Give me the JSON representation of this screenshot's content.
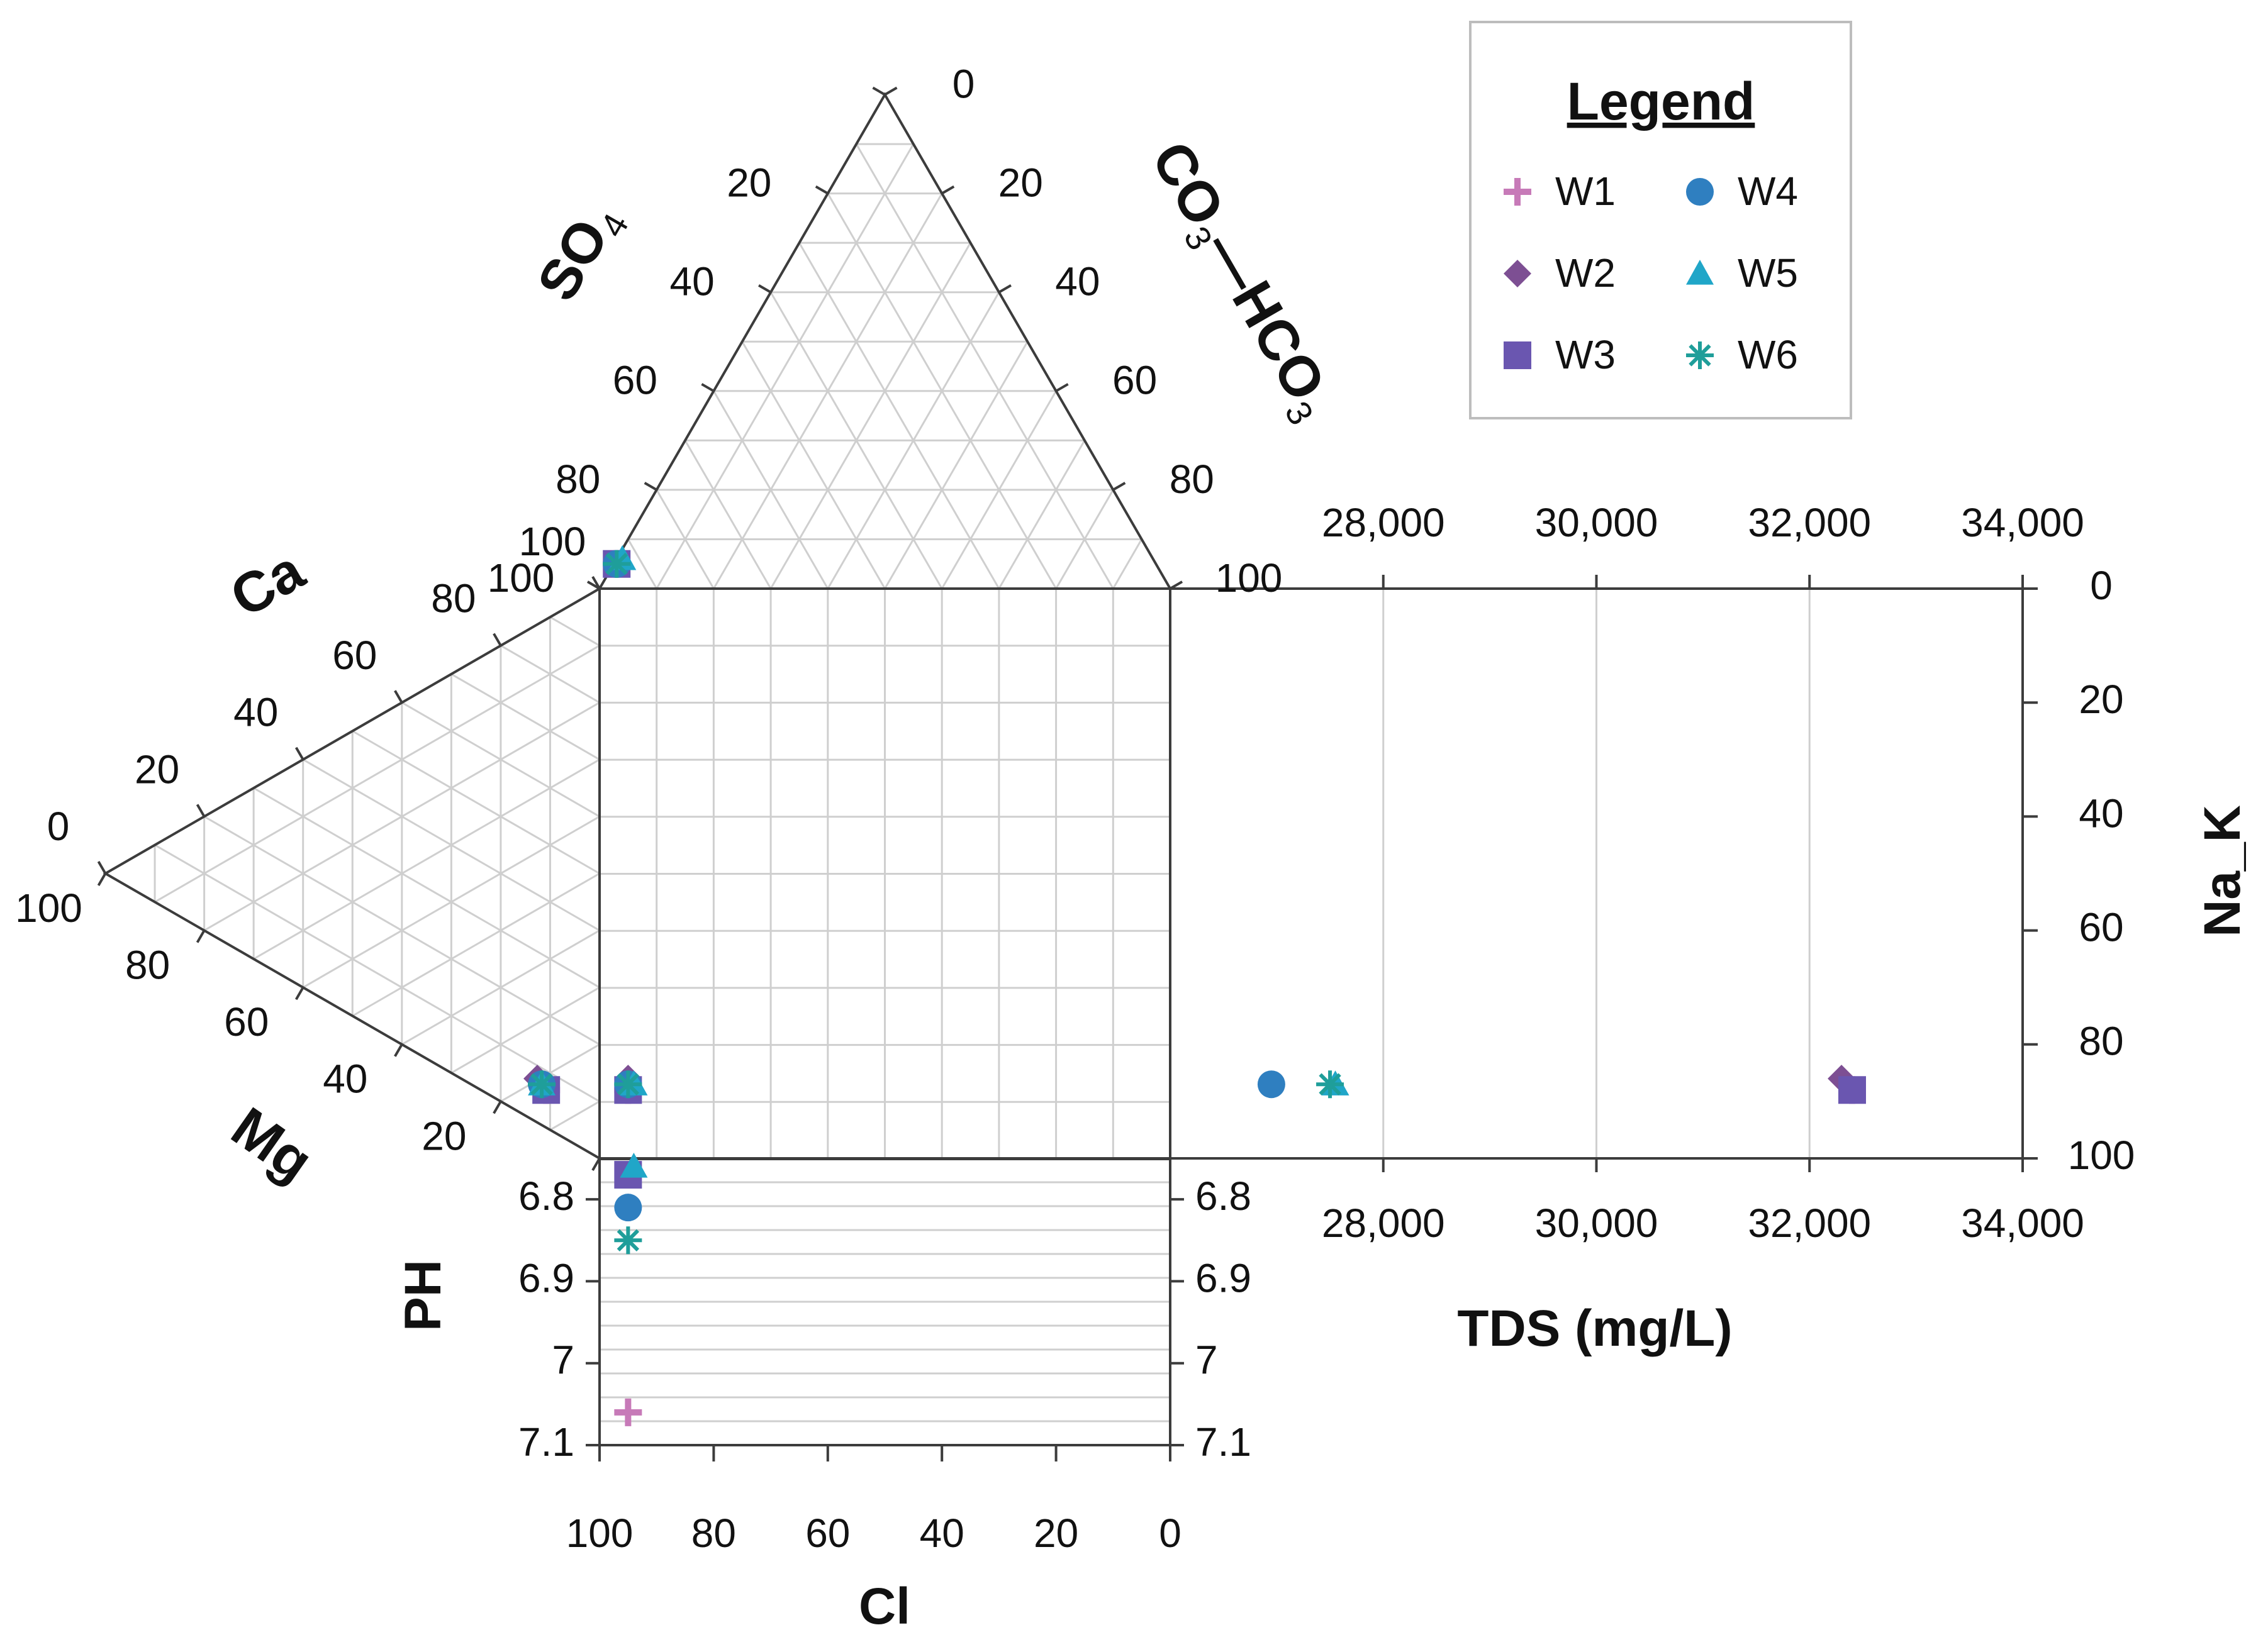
{
  "chart_data": {
    "type": "scatter",
    "subtype": "durov-diagram",
    "colors": {
      "W1": "#c77ab8",
      "W2": "#7d4f93",
      "W3": "#6a56b0",
      "W4": "#2f7fc0",
      "W5": "#20a6c8",
      "W6": "#1f9e9a"
    },
    "legend": {
      "title": "Legend",
      "position": "top-right",
      "entries": [
        {
          "name": "W1",
          "marker": "plus"
        },
        {
          "name": "W4",
          "marker": "circle"
        },
        {
          "name": "W2",
          "marker": "diamond"
        },
        {
          "name": "W5",
          "marker": "triangle"
        },
        {
          "name": "W3",
          "marker": "square"
        },
        {
          "name": "W6",
          "marker": "asterisk"
        }
      ]
    },
    "axes": {
      "anion_triangle": {
        "left_label": "SO",
        "left_sub": "4",
        "right_label": "CO",
        "right_sub1": "3",
        "right_mid": "—HCO",
        "right_sub2": "3",
        "left_ticks": [
          "100",
          "80",
          "60",
          "40",
          "20"
        ],
        "right_ticks": [
          "0",
          "20",
          "40",
          "60",
          "80",
          "100"
        ]
      },
      "cation_triangle": {
        "top_label": "Ca",
        "bottom_label": "Mg",
        "top_ticks": [
          "100",
          "80",
          "60",
          "40",
          "20",
          "0"
        ],
        "bottom_ticks": [
          "100",
          "80",
          "60",
          "40",
          "20"
        ]
      },
      "cl_axis": {
        "label": "Cl",
        "ticks": [
          "100",
          "80",
          "60",
          "40",
          "20",
          "0"
        ],
        "range": [
          100,
          0
        ]
      },
      "ph_axis": {
        "label": "PH",
        "ticks": [
          "6.8",
          "6.9",
          "7",
          "7.1"
        ],
        "range": [
          6.75,
          7.1
        ]
      },
      "tds_axis": {
        "label": "TDS (mg/L)",
        "ticks": [
          "28,000",
          "30,000",
          "32,000",
          "34,000"
        ],
        "range": [
          26000,
          34000
        ]
      },
      "nak_axis": {
        "label": "Na_K",
        "ticks": [
          "0",
          "20",
          "40",
          "60",
          "80",
          "100"
        ],
        "range": [
          0,
          100
        ]
      }
    },
    "samples": [
      {
        "name": "W1",
        "ca": 2,
        "mg": 10,
        "na_k": 88,
        "so4": 2,
        "co3_hco3": 3,
        "cl": 95,
        "tds": 32400,
        "ph": 7.06
      },
      {
        "name": "W2",
        "ca": 2,
        "mg": 12,
        "na_k": 86,
        "so4": 2,
        "co3_hco3": 3,
        "cl": 95,
        "tds": 32300,
        "ph": 6.81
      },
      {
        "name": "W3",
        "ca": 1,
        "mg": 11,
        "na_k": 88,
        "so4": 2,
        "co3_hco3": 3,
        "cl": 95,
        "tds": 32400,
        "ph": 6.77
      },
      {
        "name": "W4",
        "ca": 2,
        "mg": 11,
        "na_k": 87,
        "so4": 2,
        "co3_hco3": 3,
        "cl": 95,
        "tds": 26950,
        "ph": 6.81
      },
      {
        "name": "W5",
        "ca": 3,
        "mg": 10,
        "na_k": 87,
        "so4": 2,
        "co3_hco3": 4,
        "cl": 94,
        "tds": 27550,
        "ph": 6.76
      },
      {
        "name": "W6",
        "ca": 2,
        "mg": 11,
        "na_k": 87,
        "so4": 2,
        "co3_hco3": 3,
        "cl": 95,
        "tds": 27500,
        "ph": 6.85
      }
    ]
  }
}
